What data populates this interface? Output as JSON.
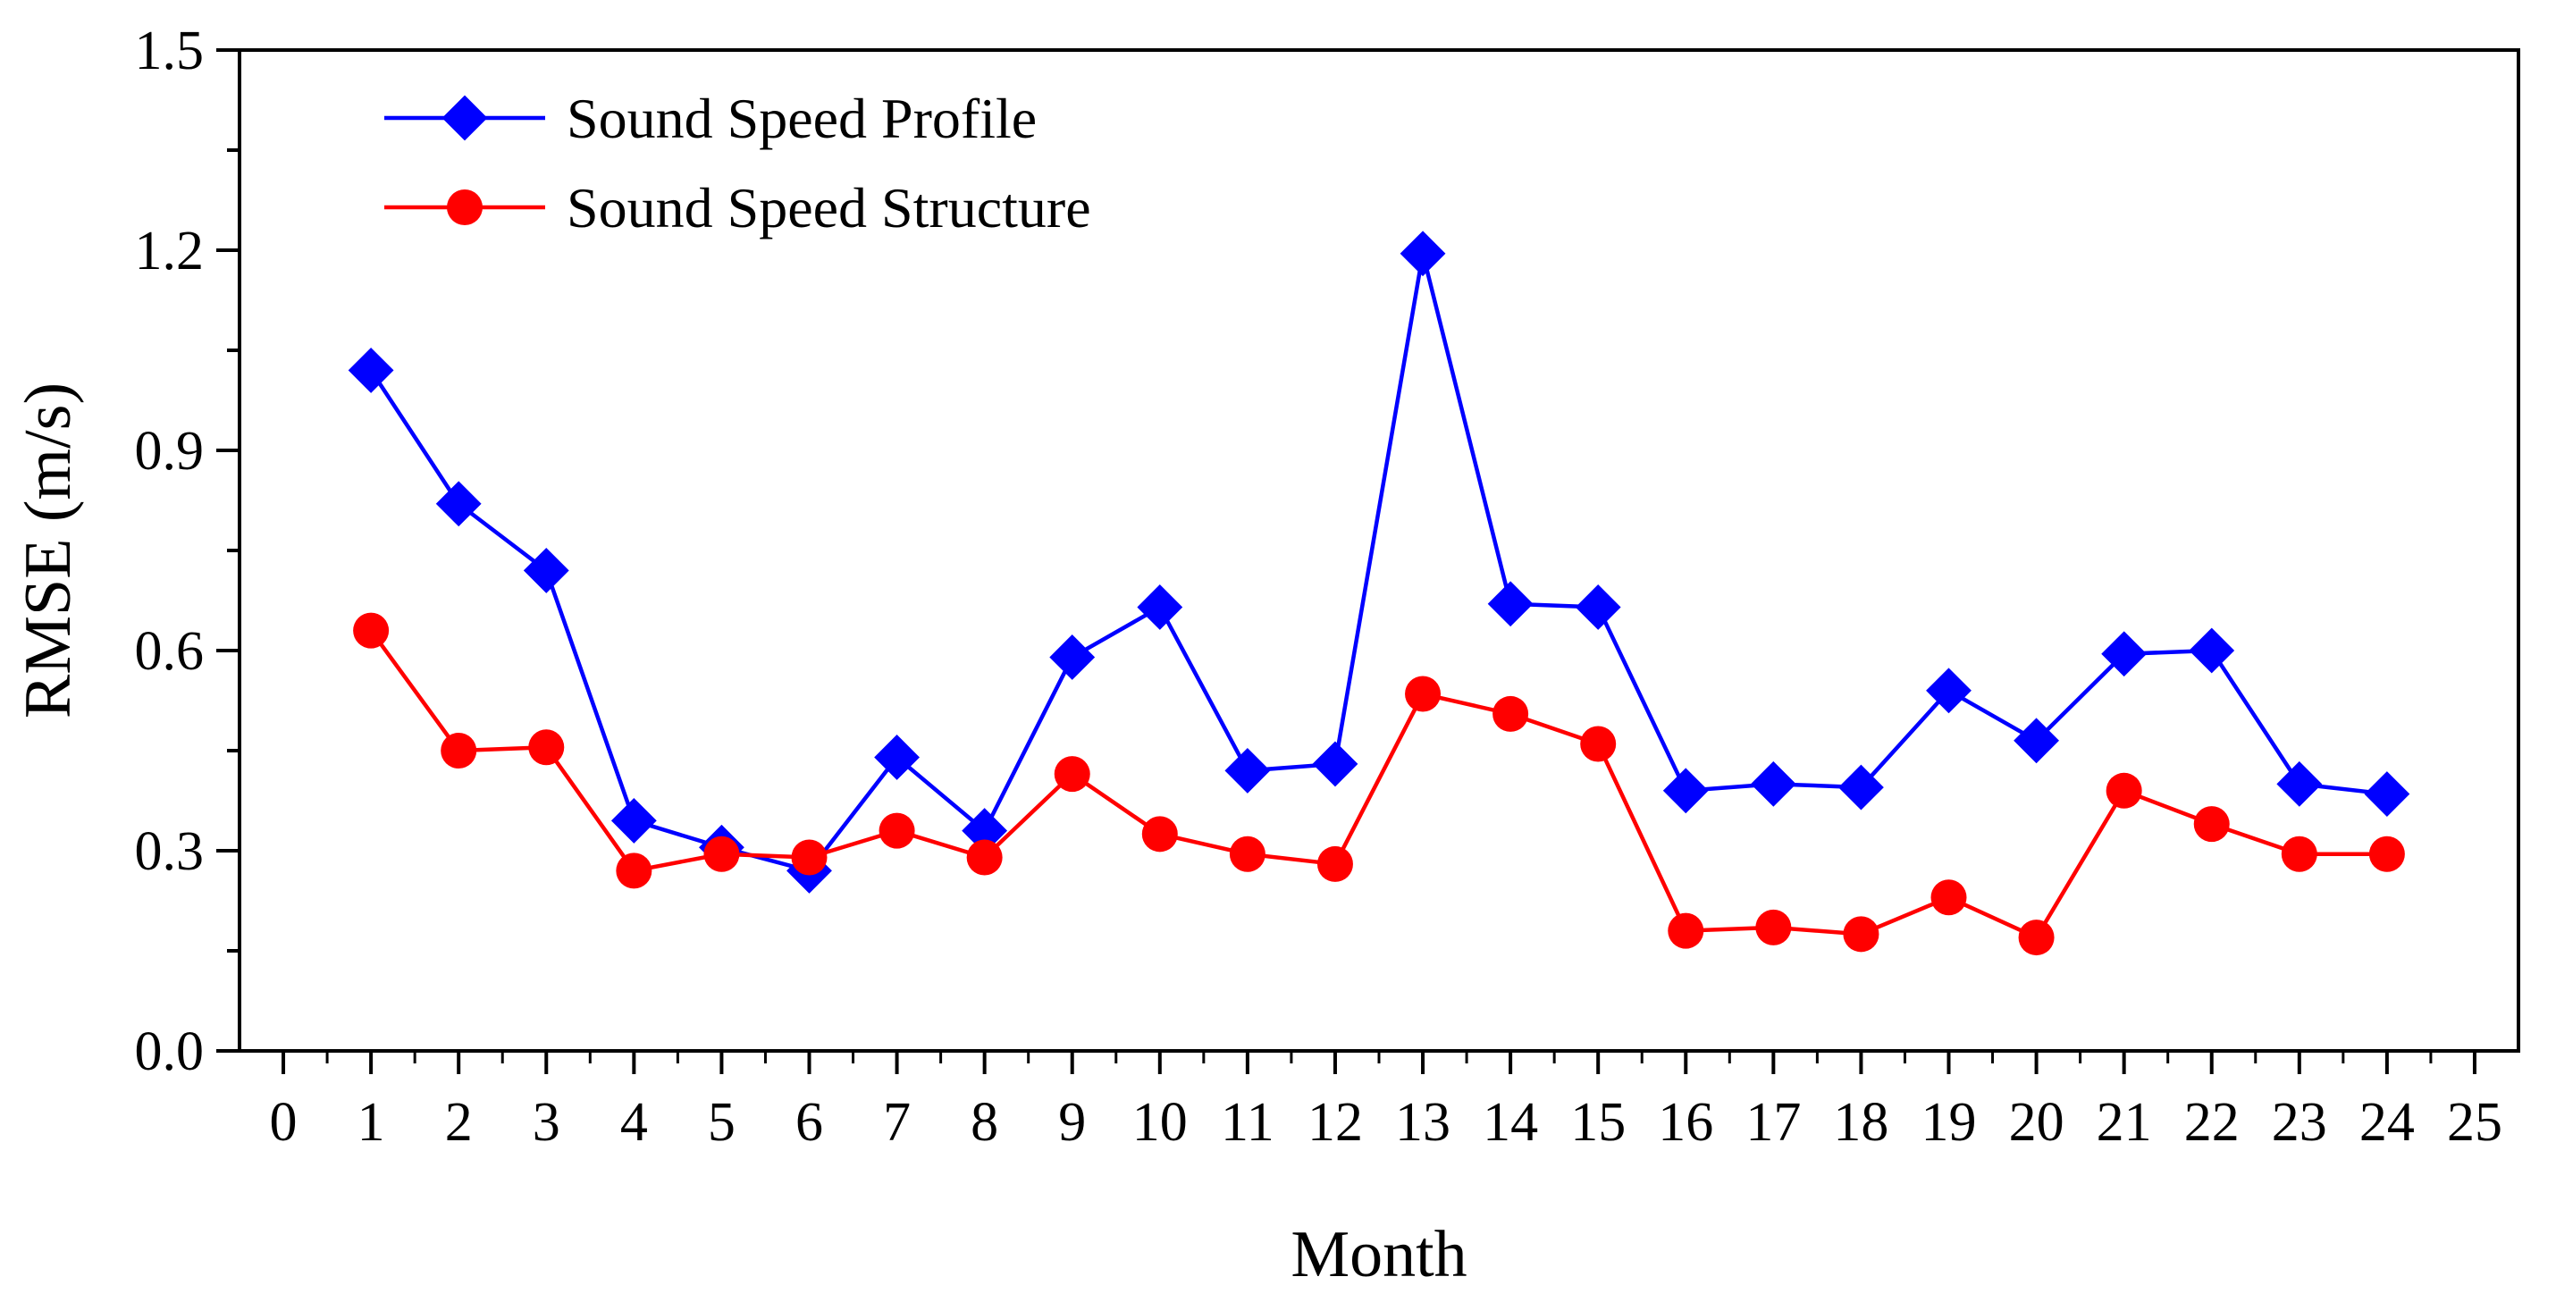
{
  "chart_data": {
    "type": "line",
    "title": "",
    "xlabel": "Month",
    "ylabel": "RMSE (m/s)",
    "xlim": [
      -0.5,
      25.5
    ],
    "ylim": [
      0,
      1.5
    ],
    "x_ticks": [
      0,
      1,
      2,
      3,
      4,
      5,
      6,
      7,
      8,
      9,
      10,
      11,
      12,
      13,
      14,
      15,
      16,
      17,
      18,
      19,
      20,
      21,
      22,
      23,
      24,
      25
    ],
    "y_ticks": [
      0.0,
      0.3,
      0.6,
      0.9,
      1.2,
      1.5
    ],
    "y_tick_labels": [
      "0.0",
      "0.3",
      "0.6",
      "0.9",
      "1.2",
      "1.5"
    ],
    "legend_position": "top-left",
    "grid": false,
    "x": [
      1,
      2,
      3,
      4,
      5,
      6,
      7,
      8,
      9,
      10,
      11,
      12,
      13,
      14,
      15,
      16,
      17,
      18,
      19,
      20,
      21,
      22,
      23,
      24
    ],
    "series": [
      {
        "name": "Sound Speed Profile",
        "color": "#0000ff",
        "marker": "diamond",
        "values": [
          1.02,
          0.82,
          0.72,
          0.345,
          0.305,
          0.27,
          0.44,
          0.33,
          0.59,
          0.665,
          0.42,
          0.43,
          1.195,
          0.67,
          0.665,
          0.39,
          0.4,
          0.395,
          0.54,
          0.465,
          0.595,
          0.6,
          0.4,
          0.385
        ]
      },
      {
        "name": "Sound Speed Structure",
        "color": "#ff0000",
        "marker": "circle",
        "values": [
          0.63,
          0.45,
          0.455,
          0.27,
          0.295,
          0.29,
          0.33,
          0.29,
          0.415,
          0.325,
          0.295,
          0.28,
          0.535,
          0.505,
          0.46,
          0.18,
          0.185,
          0.175,
          0.23,
          0.17,
          0.39,
          0.34,
          0.295,
          0.295
        ]
      }
    ]
  }
}
